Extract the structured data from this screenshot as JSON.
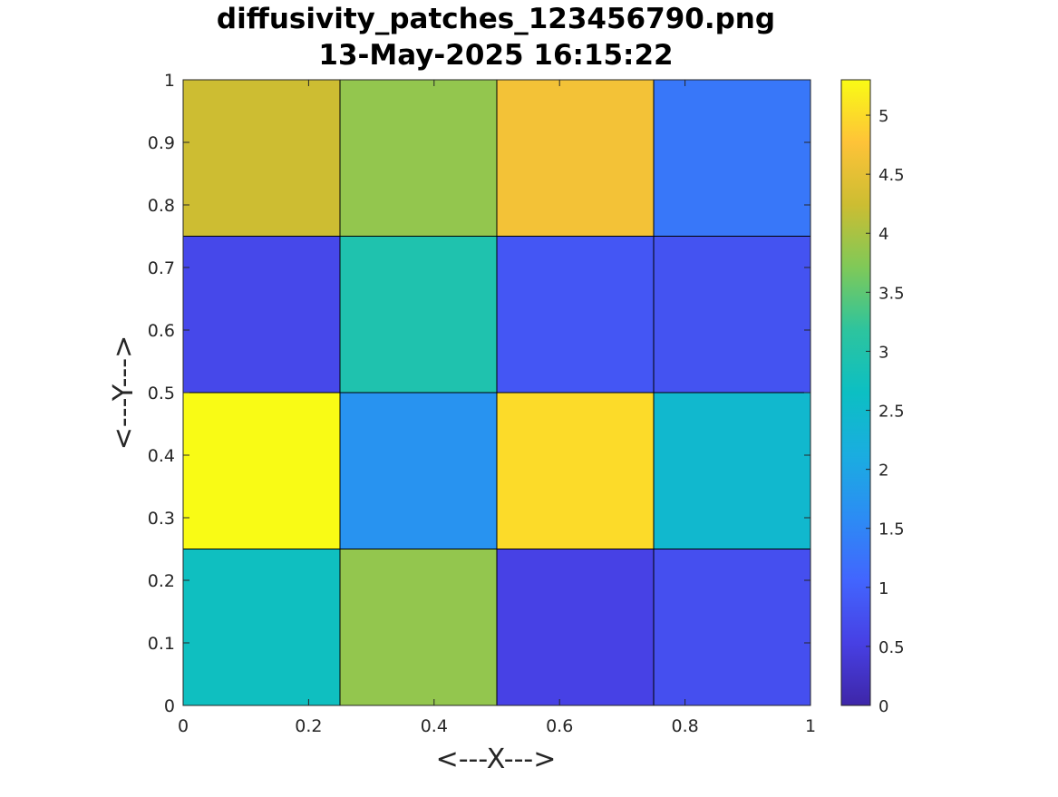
{
  "chart_data": {
    "type": "heatmap",
    "title": "diffusivity_patches_123456790.png",
    "subtitle": "13-May-2025 16:15:22",
    "xlabel": "<---X--->",
    "ylabel": "<---Y--->",
    "xlim": [
      0,
      1
    ],
    "ylim": [
      0,
      1
    ],
    "x_ticks": [
      0,
      0.2,
      0.4,
      0.6,
      0.8,
      1
    ],
    "y_ticks": [
      0,
      0.1,
      0.2,
      0.3,
      0.4,
      0.5,
      0.6,
      0.7,
      0.8,
      0.9,
      1
    ],
    "x_tick_labels": [
      "0",
      "0.2",
      "0.4",
      "0.6",
      "0.8",
      "1"
    ],
    "y_tick_labels": [
      "0",
      "0.1",
      "0.2",
      "0.3",
      "0.4",
      "0.5",
      "0.6",
      "0.7",
      "0.8",
      "0.9",
      "1"
    ],
    "x_edges": [
      0,
      0.25,
      0.5,
      0.75,
      1
    ],
    "y_edges": [
      0,
      0.25,
      0.5,
      0.75,
      1
    ],
    "values_bottom_to_top": [
      [
        2.7,
        3.85,
        0.55,
        0.75
      ],
      [
        5.3,
        1.7,
        5.0,
        2.45
      ],
      [
        0.65,
        2.95,
        0.85,
        0.8
      ],
      [
        4.25,
        3.85,
        4.65,
        1.3
      ]
    ],
    "colormap": "parula",
    "colorbar": {
      "clim": [
        0,
        5.3
      ],
      "ticks": [
        0,
        0.5,
        1,
        1.5,
        2,
        2.5,
        3,
        3.5,
        4,
        4.5,
        5
      ],
      "tick_labels": [
        "0",
        "0.5",
        "1",
        "1.5",
        "2",
        "2.5",
        "3",
        "3.5",
        "4",
        "4.5",
        "5"
      ]
    },
    "grid": false
  }
}
